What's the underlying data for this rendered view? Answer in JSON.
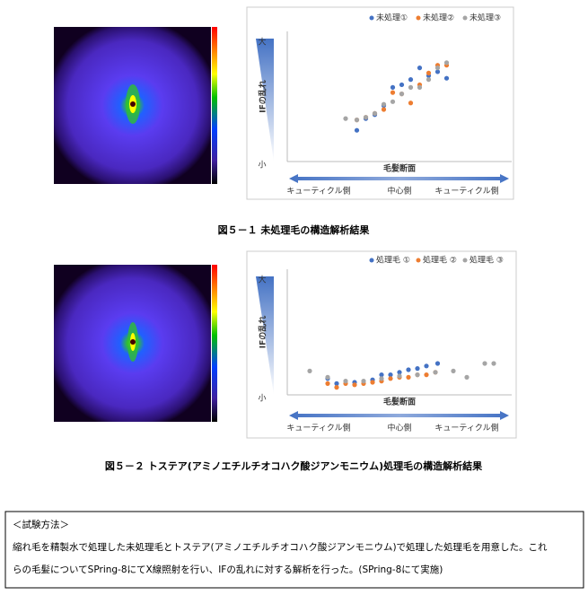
{
  "chart_data": [
    {
      "type": "scatter",
      "title": "図５－１ 未処理毛の構造解析結果",
      "y_label": "IFの乱れ",
      "y_high_label": "大",
      "y_low_label": "小",
      "x_label": "毛髪断面",
      "x_region_labels": [
        "キューティクル側",
        "中心側",
        "キューティクル側"
      ],
      "xlim": [
        0,
        10
      ],
      "ylim": [
        0,
        10
      ],
      "legend": "top-right",
      "series": [
        {
          "name": "未処理①",
          "color": "#4472c4",
          "x": [
            3.1,
            3.5,
            3.9,
            4.3,
            4.7,
            5.1,
            5.5,
            5.9,
            6.3,
            6.7,
            7.1
          ],
          "values": [
            2.4,
            3.3,
            3.6,
            4.3,
            5.7,
            5.9,
            6.3,
            7.2,
            6.6,
            6.9,
            6.4
          ]
        },
        {
          "name": "未処理②",
          "color": "#ed7d31",
          "x": [
            3.1,
            3.5,
            3.9,
            4.3,
            4.7,
            5.1,
            5.5,
            5.9,
            6.3,
            6.7,
            7.1
          ],
          "values": [
            3.2,
            3.4,
            3.7,
            4.0,
            5.3,
            5.2,
            4.5,
            5.9,
            6.8,
            7.4,
            7.4
          ]
        },
        {
          "name": "未処理③",
          "color": "#a5a5a5",
          "x": [
            2.6,
            3.1,
            3.5,
            3.9,
            4.3,
            4.7,
            5.1,
            5.5,
            5.9,
            6.3,
            6.7,
            7.1
          ],
          "values": [
            3.3,
            3.2,
            3.4,
            3.7,
            4.4,
            4.6,
            5.2,
            5.7,
            5.7,
            6.3,
            7.2,
            7.6
          ]
        }
      ]
    },
    {
      "type": "scatter",
      "title": "図５－２ トステア(アミノエチルチオコハク酸ジアンモニウム)処理毛の構造解析結果",
      "y_label": "IFの乱れ",
      "y_high_label": "大",
      "y_low_label": "小",
      "x_label": "毛髪断面",
      "x_region_labels": [
        "キューティクル側",
        "中心側",
        "キューティクル側"
      ],
      "xlim": [
        0,
        10
      ],
      "ylim": [
        0,
        10
      ],
      "legend": "top-right",
      "series": [
        {
          "name": "処理毛 ①",
          "color": "#4472c4",
          "x": [
            1.8,
            2.2,
            3.0,
            3.8,
            4.2,
            4.6,
            5.0,
            5.4,
            5.8,
            6.2,
            6.7
          ],
          "values": [
            1.3,
            0.9,
            1.0,
            1.2,
            1.6,
            1.6,
            1.8,
            2.0,
            2.1,
            2.3,
            2.5
          ]
        },
        {
          "name": "処理毛 ②",
          "color": "#ed7d31",
          "x": [
            1.8,
            2.2,
            2.6,
            3.0,
            3.4,
            3.8,
            4.2,
            4.6,
            5.0,
            5.4,
            5.8,
            6.2,
            6.6
          ],
          "values": [
            0.9,
            0.6,
            0.9,
            0.8,
            0.9,
            1.0,
            1.1,
            1.3,
            1.4,
            1.4,
            1.6,
            1.6,
            1.8
          ]
        },
        {
          "name": "処理毛 ③",
          "color": "#a5a5a5",
          "x": [
            1.0,
            1.8,
            2.6,
            3.4,
            4.2,
            5.0,
            5.8,
            6.6,
            7.4,
            8.0,
            8.8,
            9.2
          ],
          "values": [
            1.9,
            1.4,
            1.1,
            1.1,
            1.3,
            1.5,
            1.6,
            1.8,
            1.9,
            1.4,
            2.5,
            2.5
          ]
        }
      ]
    }
  ],
  "method": {
    "heading": "＜試験方法＞",
    "lines": [
      "縮れ毛を精製水で処理した未処理毛とトステア(アミノエチルチオコハク酸ジアンモニウム)で処理した処理毛を用意した。これ",
      "らの毛髪についてSPring-8にてX線照射を行い、IFの乱れに対する解析を行った。(SPring-8にて実施)"
    ]
  }
}
